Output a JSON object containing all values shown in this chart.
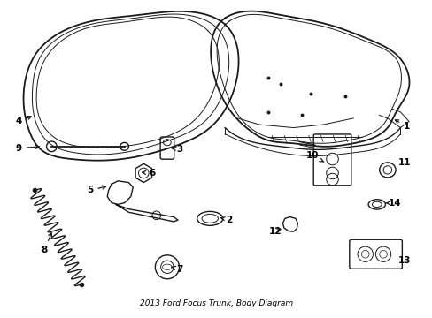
{
  "title": "2013 Ford Focus Trunk, Body Diagram",
  "background_color": "#ffffff",
  "line_color": "#1a1a1a",
  "label_color": "#000000",
  "fig_width": 4.89,
  "fig_height": 3.6,
  "dpi": 100
}
